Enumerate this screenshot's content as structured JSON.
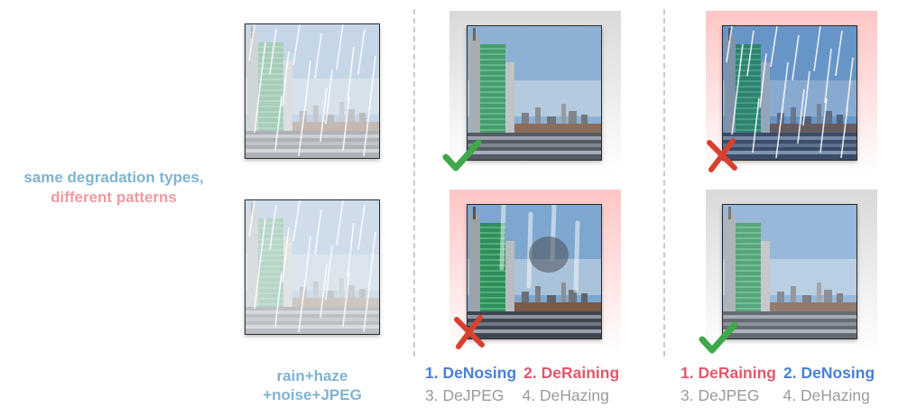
{
  "left_caption": {
    "line1": "same degradation types,",
    "line2": "different patterns"
  },
  "input_caption": {
    "line1": "rain+haze",
    "line2": "+noise+JPEG"
  },
  "pipeline_a": {
    "step1": "1. DeNosing",
    "step2": "2. DeRaining",
    "step3": "3. DeJPEG",
    "step4": "4. DeHazing"
  },
  "pipeline_b": {
    "step1": "1. DeRaining",
    "step2": "2. DeNosing",
    "step3": "3. DeJPEG",
    "step4": "4. DeHazing"
  },
  "results": {
    "pipeline_a_top": "success",
    "pipeline_a_bottom": "failure",
    "pipeline_b_top": "failure",
    "pipeline_b_bottom": "success"
  },
  "colors": {
    "blue_step": "#4a7fd6",
    "red_step": "#e0596b",
    "gray_step": "#9a9a9a",
    "caption_blue": "#7fb3d1",
    "caption_pink": "#ef9aa2",
    "success_mark": "#3ea84a",
    "failure_mark": "#d8412f"
  },
  "icons": {
    "success": "check-icon",
    "failure": "cross-icon"
  }
}
